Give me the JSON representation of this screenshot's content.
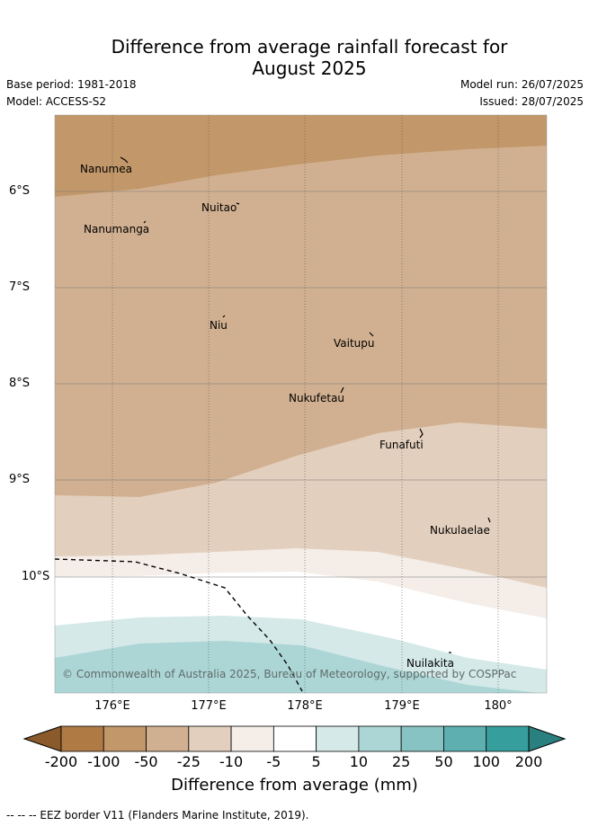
{
  "header": {
    "title_line1": "Difference from average rainfall forecast for",
    "title_line2": "August 2025",
    "base_period": "Base period: 1981-2018",
    "model": "Model: ACCESS-S2",
    "model_run": "Model run: 26/07/2025",
    "issued": "Issued: 28/07/2025"
  },
  "map": {
    "lat_labels": [
      "6°S",
      "7°S",
      "8°S",
      "9°S",
      "10°S"
    ],
    "lon_labels": [
      "176°E",
      "177°E",
      "178°E",
      "179°E",
      "180°"
    ],
    "places": [
      "Nanumea",
      "Nuitao",
      "Nanumanga",
      "Niu",
      "Vaitupu",
      "Nukufetau",
      "Funafuti",
      "Nukulaelae",
      "Nuilakita"
    ],
    "copyright": "© Commonwealth of Australia 2025, Bureau of Meteorology, supported by COSPPac"
  },
  "legend": {
    "ticks": [
      "-200",
      "-100",
      "-50",
      "-25",
      "-10",
      "-5",
      "5",
      "10",
      "25",
      "50",
      "100",
      "200"
    ],
    "colors": [
      "#8b5a2b",
      "#b07a45",
      "#c29769",
      "#d1b091",
      "#e3cfbd",
      "#f4ede8",
      "#ffffff",
      "#d4e9e8",
      "#acd6d5",
      "#88c3c3",
      "#5eb0b0",
      "#379e9e",
      "#2a7f7f"
    ],
    "title": "Difference from average (mm)"
  },
  "footer": {
    "eez_label": "--  --  -- EEZ border V11 (Flanders Marine Institute, 2019)."
  }
}
